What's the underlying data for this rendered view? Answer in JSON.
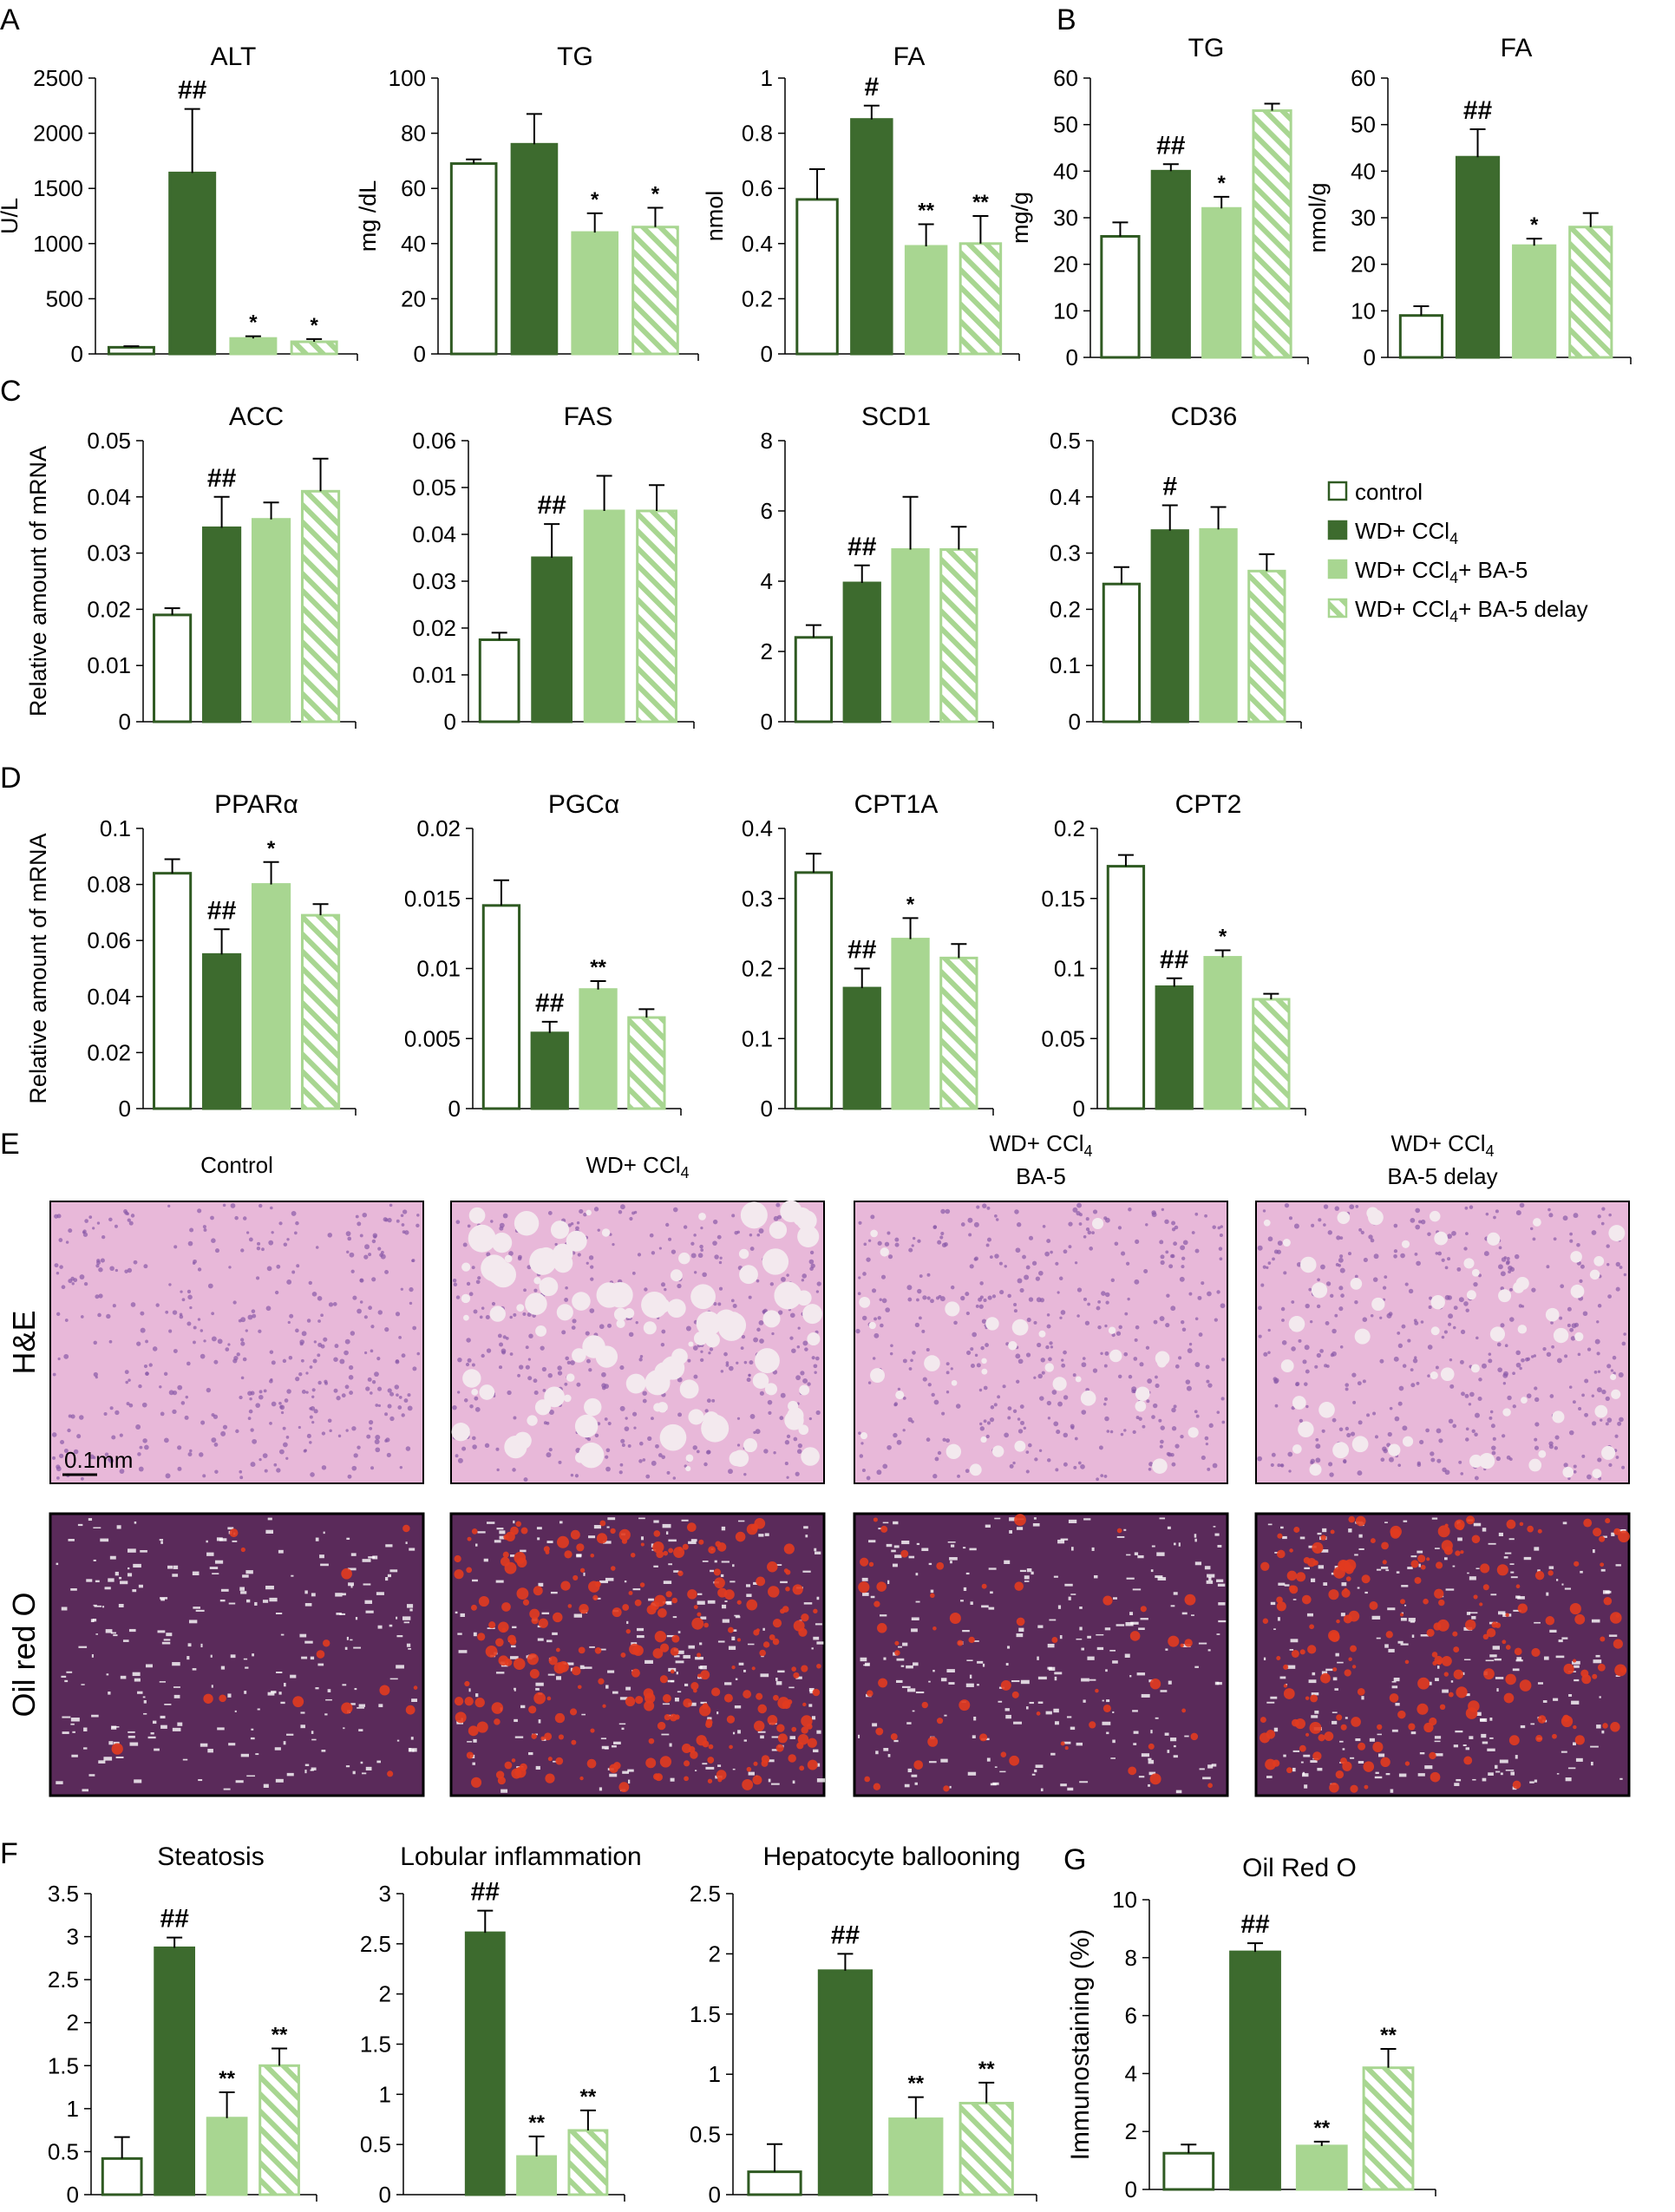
{
  "colors": {
    "control": "#ffffff",
    "wd_ccl4": "#3d6b2e",
    "ba5": "#a8d691",
    "ba5_delay_stripe": "#a8d691",
    "outline_control": "#2f5a22",
    "outline_light": "#a8d691",
    "hne_bg": "#e8b8d9",
    "oro_bg": "#5a2a5a",
    "oro_lipid": "#e23b1f"
  },
  "panel_letters": [
    "A",
    "B",
    "C",
    "D",
    "E",
    "F",
    "G"
  ],
  "legend": [
    {
      "key": "control",
      "text": "control"
    },
    {
      "key": "wd_ccl4",
      "text": "WD+ CCl",
      "sub": "4"
    },
    {
      "key": "ba5",
      "text": "WD+ CCl",
      "sub": "4",
      "suffix": "+ BA-5"
    },
    {
      "key": "ba5_delay",
      "text": "WD+ CCl",
      "sub": "4",
      "suffix": "+ BA-5 delay"
    }
  ],
  "chart_data": [
    {
      "id": "A_ALT",
      "type": "bar",
      "title": "ALT",
      "ylabel": "U/L",
      "ylim": [
        0,
        2500
      ],
      "ticks": [
        0,
        500,
        1000,
        1500,
        2000,
        2500
      ],
      "categories": [
        "control",
        "WD+ CCl4",
        "WD+ CCl4+ BA-5",
        "WD+ CCl4+ BA-5 delay"
      ],
      "values": [
        60,
        1640,
        140,
        110
      ],
      "errors": [
        10,
        580,
        20,
        25
      ],
      "annotations": [
        "",
        "##",
        "*",
        "*"
      ]
    },
    {
      "id": "A_TG",
      "type": "bar",
      "title": "TG",
      "ylabel": "mg /dL",
      "ylim": [
        0,
        100
      ],
      "ticks": [
        0,
        20,
        40,
        60,
        80,
        100
      ],
      "categories": [
        "control",
        "WD+ CCl4",
        "WD+ CCl4+ BA-5",
        "WD+ CCl4+ BA-5 delay"
      ],
      "values": [
        69,
        76,
        44,
        46
      ],
      "errors": [
        1.5,
        11,
        7,
        7
      ],
      "annotations": [
        "",
        "",
        "*",
        "*"
      ]
    },
    {
      "id": "A_FA",
      "type": "bar",
      "title": "FA",
      "ylabel": "nmol",
      "ylim": [
        0,
        1
      ],
      "ticks": [
        0,
        0.2,
        0.4,
        0.6,
        0.8,
        1
      ],
      "categories": [
        "control",
        "WD+ CCl4",
        "WD+ CCl4+ BA-5",
        "WD+ CCl4+ BA-5 delay"
      ],
      "values": [
        0.56,
        0.85,
        0.39,
        0.4
      ],
      "errors": [
        0.11,
        0.05,
        0.08,
        0.1
      ],
      "annotations": [
        "",
        "#",
        "**",
        "**"
      ]
    },
    {
      "id": "B_TG",
      "type": "bar",
      "title": "TG",
      "ylabel": "mg/g",
      "ylim": [
        0,
        60
      ],
      "ticks": [
        0,
        10,
        20,
        30,
        40,
        50,
        60
      ],
      "categories": [
        "control",
        "WD+ CCl4",
        "WD+ CCl4+ BA-5",
        "WD+ CCl4+ BA-5 delay"
      ],
      "values": [
        26,
        40,
        32,
        53
      ],
      "errors": [
        3,
        1.5,
        2.5,
        1.5
      ],
      "annotations": [
        "",
        "##",
        "*",
        ""
      ]
    },
    {
      "id": "B_FA",
      "type": "bar",
      "title": "FA",
      "ylabel": "nmol/g",
      "ylim": [
        0,
        60
      ],
      "ticks": [
        0,
        10,
        20,
        30,
        40,
        50,
        60
      ],
      "categories": [
        "control",
        "WD+ CCl4",
        "WD+ CCl4+ BA-5",
        "WD+ CCl4+ BA-5 delay"
      ],
      "values": [
        9,
        43,
        24,
        28
      ],
      "errors": [
        2,
        6,
        1.5,
        3
      ],
      "annotations": [
        "",
        "##",
        "*",
        ""
      ]
    },
    {
      "id": "C_ACC",
      "type": "bar",
      "title": "ACC",
      "ylabel": "Relative amount of mRNA",
      "ylim": [
        0,
        0.05
      ],
      "ticks": [
        0,
        0.01,
        0.02,
        0.03,
        0.04,
        0.05
      ],
      "categories": [
        "control",
        "WD+ CCl4",
        "WD+ CCl4+ BA-5",
        "WD+ CCl4+ BA-5 delay"
      ],
      "values": [
        0.019,
        0.0345,
        0.036,
        0.041
      ],
      "errors": [
        0.0012,
        0.0055,
        0.003,
        0.0058
      ],
      "annotations": [
        "",
        "##",
        "",
        ""
      ]
    },
    {
      "id": "C_FAS",
      "type": "bar",
      "title": "FAS",
      "ylabel": "",
      "ylim": [
        0,
        0.06
      ],
      "ticks": [
        0,
        0.01,
        0.02,
        0.03,
        0.04,
        0.05,
        0.06
      ],
      "categories": [
        "control",
        "WD+ CCl4",
        "WD+ CCl4+ BA-5",
        "WD+ CCl4+ BA-5 delay"
      ],
      "values": [
        0.0175,
        0.035,
        0.045,
        0.045
      ],
      "errors": [
        0.0015,
        0.0072,
        0.0075,
        0.0055
      ],
      "annotations": [
        "",
        "##",
        "",
        ""
      ]
    },
    {
      "id": "C_SCD1",
      "type": "bar",
      "title": "SCD1",
      "ylabel": "",
      "ylim": [
        0,
        8
      ],
      "ticks": [
        0,
        2,
        4,
        6,
        8
      ],
      "categories": [
        "control",
        "WD+ CCl4",
        "WD+ CCl4+ BA-5",
        "WD+ CCl4+ BA-5 delay"
      ],
      "values": [
        2.4,
        3.95,
        4.9,
        4.9
      ],
      "errors": [
        0.35,
        0.5,
        1.5,
        0.65
      ],
      "annotations": [
        "",
        "##",
        "",
        ""
      ]
    },
    {
      "id": "C_CD36",
      "type": "bar",
      "title": "CD36",
      "ylabel": "",
      "ylim": [
        0,
        0.5
      ],
      "ticks": [
        0,
        0.1,
        0.2,
        0.3,
        0.4,
        0.5
      ],
      "categories": [
        "control",
        "WD+ CCl4",
        "WD+ CCl4+ BA-5",
        "WD+ CCl4+ BA-5 delay"
      ],
      "values": [
        0.245,
        0.34,
        0.342,
        0.268
      ],
      "errors": [
        0.03,
        0.045,
        0.04,
        0.03
      ],
      "annotations": [
        "",
        "#",
        "",
        ""
      ]
    },
    {
      "id": "D_PPARa",
      "type": "bar",
      "title": "PPARα",
      "ylabel": "Relative amount of mRNA",
      "ylim": [
        0,
        0.1
      ],
      "ticks": [
        0,
        0.02,
        0.04,
        0.06,
        0.08,
        0.1
      ],
      "categories": [
        "control",
        "WD+ CCl4",
        "WD+ CCl4+ BA-5",
        "WD+ CCl4+ BA-5 delay"
      ],
      "values": [
        0.084,
        0.055,
        0.08,
        0.069
      ],
      "errors": [
        0.005,
        0.009,
        0.008,
        0.004
      ],
      "annotations": [
        "",
        "##",
        "*",
        ""
      ]
    },
    {
      "id": "D_PGCa",
      "type": "bar",
      "title": "PGCα",
      "ylabel": "",
      "ylim": [
        0,
        0.02
      ],
      "ticks": [
        0,
        0.005,
        0.01,
        0.015,
        0.02
      ],
      "categories": [
        "control",
        "WD+ CCl4",
        "WD+ CCl4+ BA-5",
        "WD+ CCl4+ BA-5 delay"
      ],
      "values": [
        0.0145,
        0.0054,
        0.0085,
        0.0065
      ],
      "errors": [
        0.0018,
        0.0008,
        0.0006,
        0.0006
      ],
      "annotations": [
        "",
        "##",
        "**",
        ""
      ]
    },
    {
      "id": "D_CPT1A",
      "type": "bar",
      "title": "CPT1A",
      "ylabel": "",
      "ylim": [
        0,
        0.4
      ],
      "ticks": [
        0,
        0.1,
        0.2,
        0.3,
        0.4
      ],
      "categories": [
        "control",
        "WD+ CCl4",
        "WD+ CCl4+ BA-5",
        "WD+ CCl4+ BA-5 delay"
      ],
      "values": [
        0.337,
        0.172,
        0.242,
        0.215
      ],
      "errors": [
        0.027,
        0.028,
        0.03,
        0.02
      ],
      "annotations": [
        "",
        "##",
        "*",
        ""
      ]
    },
    {
      "id": "D_CPT2",
      "type": "bar",
      "title": "CPT2",
      "ylabel": "",
      "ylim": [
        0,
        0.2
      ],
      "ticks": [
        0,
        0.05,
        0.1,
        0.15,
        0.2
      ],
      "categories": [
        "control",
        "WD+ CCl4",
        "WD+ CCl4+ BA-5",
        "WD+ CCl4+ BA-5 delay"
      ],
      "values": [
        0.173,
        0.087,
        0.108,
        0.078
      ],
      "errors": [
        0.008,
        0.006,
        0.005,
        0.004
      ],
      "annotations": [
        "",
        "##",
        "*",
        ""
      ]
    },
    {
      "id": "F_Steatosis",
      "type": "bar",
      "title": "Steatosis",
      "ylabel": "",
      "ylim": [
        0,
        3.5
      ],
      "ticks": [
        0,
        0.5,
        1,
        1.5,
        2,
        2.5,
        3,
        3.5
      ],
      "categories": [
        "control",
        "WD+ CCl4",
        "WD+ CCl4+ BA-5",
        "WD+ CCl4+ BA-5 delay"
      ],
      "values": [
        0.42,
        2.87,
        0.89,
        1.5
      ],
      "errors": [
        0.25,
        0.12,
        0.3,
        0.2
      ],
      "annotations": [
        "",
        "##",
        "**",
        "**"
      ]
    },
    {
      "id": "F_Lobular",
      "type": "bar",
      "title": "Lobular inflammation",
      "ylabel": "",
      "ylim": [
        0,
        3
      ],
      "ticks": [
        0,
        0.5,
        1,
        1.5,
        2,
        2.5,
        3
      ],
      "categories": [
        "control",
        "WD+ CCl4",
        "WD+ CCl4+ BA-5",
        "WD+ CCl4+ BA-5 delay"
      ],
      "values": [
        0,
        2.61,
        0.38,
        0.64
      ],
      "errors": [
        0,
        0.22,
        0.2,
        0.2
      ],
      "annotations": [
        "",
        "##",
        "**",
        "**"
      ]
    },
    {
      "id": "F_Ballooning",
      "type": "bar",
      "title": "Hepatocyte ballooning",
      "ylabel": "",
      "ylim": [
        0,
        2.5
      ],
      "ticks": [
        0,
        0.5,
        1,
        1.5,
        2,
        2.5
      ],
      "categories": [
        "control",
        "WD+ CCl4",
        "WD+ CCl4+ BA-5",
        "WD+ CCl4+ BA-5 delay"
      ],
      "values": [
        0.19,
        1.86,
        0.63,
        0.76
      ],
      "errors": [
        0.23,
        0.14,
        0.18,
        0.17
      ],
      "annotations": [
        "",
        "##",
        "**",
        "**"
      ]
    },
    {
      "id": "G_ORO",
      "type": "bar",
      "title": "Oil Red O",
      "ylabel": "Immunostaining (%)",
      "ylim": [
        0,
        10
      ],
      "ticks": [
        0,
        2,
        4,
        6,
        8,
        10
      ],
      "categories": [
        "control",
        "WD+ CCl4",
        "WD+ CCl4+ BA-5",
        "WD+ CCl4+ BA-5 delay"
      ],
      "values": [
        1.25,
        8.2,
        1.5,
        4.2
      ],
      "errors": [
        0.3,
        0.3,
        0.15,
        0.65
      ],
      "annotations": [
        "",
        "##",
        "**",
        "**"
      ]
    }
  ],
  "micrographs": {
    "columns": [
      {
        "line1": "Control",
        "line2": ""
      },
      {
        "line1": "WD+ CCl",
        "sub": "4",
        "line2": ""
      },
      {
        "line1": "WD+ CCl",
        "sub": "4",
        "line2": "BA-5"
      },
      {
        "line1": "WD+ CCl",
        "sub": "4",
        "line2": "BA-5 delay"
      }
    ],
    "rows": [
      "H&E",
      "Oil red O"
    ],
    "scale_bar": "0.1mm"
  }
}
